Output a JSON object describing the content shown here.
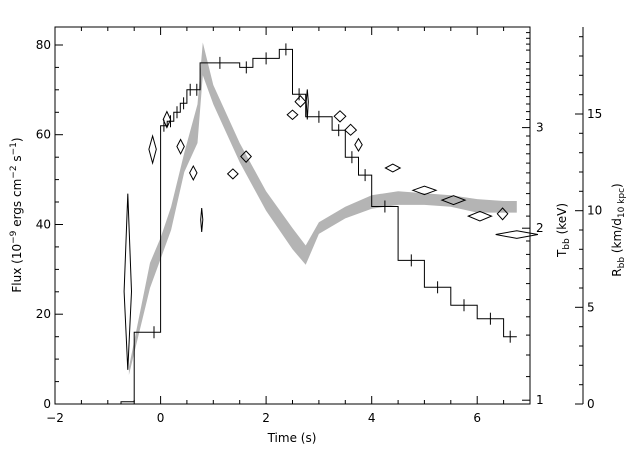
{
  "chart_data": {
    "type": "line",
    "x_axis": {
      "label": "Time (s)",
      "range": [
        -2,
        7
      ],
      "ticks": [
        -2,
        0,
        2,
        4,
        6
      ],
      "tick_labels": [
        "−2",
        "0",
        "2",
        "4",
        "6"
      ]
    },
    "y_left": {
      "label_main": "Flux (10",
      "label_sup1": "−9",
      "label_mid": " ergs cm",
      "label_sup2": "−2",
      "label_mid2": " s",
      "label_sup3": "−1",
      "label_end": ")",
      "range": [
        0,
        84
      ],
      "ticks": [
        0,
        20,
        40,
        60,
        80
      ],
      "tick_labels": [
        "0",
        "20",
        "40",
        "60",
        "80"
      ]
    },
    "y_temp": {
      "label_main": "T",
      "label_sub": "bb",
      "label_unit": " (keV)",
      "scale": "log",
      "range": [
        0.985,
        4.5
      ],
      "ticks": [
        1,
        2,
        3
      ],
      "tick_labels": [
        "1",
        "2",
        "3"
      ]
    },
    "y_radius": {
      "label_main": "R",
      "label_sub": "bb",
      "label_unit_start": " (km/d",
      "label_unit_sub": "10 kpc",
      "label_unit_end": ")",
      "range": [
        0,
        19.5
      ],
      "ticks": [
        0,
        5,
        10,
        15
      ],
      "tick_labels": [
        "0",
        "5",
        "10",
        "15"
      ]
    },
    "series": [
      {
        "kind": "flux-histogram",
        "color": "#000000",
        "edges": [
          -0.75,
          -0.5,
          -0.25,
          0.0,
          0.125,
          0.25,
          0.375,
          0.5,
          0.625,
          0.75,
          1.5,
          1.75,
          2.25,
          2.5,
          2.75,
          3.25,
          3.5,
          3.75,
          4.0,
          4.5,
          5.0,
          5.5,
          6.0,
          6.5,
          6.75
        ],
        "values": [
          0.5,
          16,
          16,
          62,
          63,
          65,
          67,
          70,
          70,
          76,
          75,
          77,
          79,
          69,
          64,
          61,
          55,
          51,
          44,
          32,
          26,
          22,
          19,
          15
        ]
      },
      {
        "kind": "radius-band",
        "color": "#b4b4b4",
        "x": [
          -0.6,
          -0.2,
          0.0,
          0.2,
          0.45,
          0.7,
          0.8,
          1.0,
          1.5,
          2.0,
          2.5,
          2.75,
          3.0,
          3.5,
          4.0,
          4.5,
          5.0,
          5.5,
          6.0,
          6.5,
          6.75
        ],
        "lower": [
          1.5,
          6.0,
          7.5,
          9.0,
          12.0,
          13.5,
          17.0,
          15.5,
          12.5,
          10.0,
          8.0,
          7.2,
          8.8,
          9.6,
          10.1,
          10.3,
          10.3,
          10.2,
          9.9,
          9.9,
          9.9
        ],
        "upper": [
          1.9,
          7.3,
          8.6,
          10.2,
          13.0,
          15.5,
          18.7,
          16.5,
          13.5,
          11.0,
          9.1,
          8.2,
          9.4,
          10.2,
          10.8,
          11.0,
          10.9,
          10.8,
          10.6,
          10.5,
          10.5
        ]
      },
      {
        "kind": "temperature-diamonds",
        "color": "#000000",
        "points": [
          {
            "t": -0.62,
            "dt": 0.07,
            "temp": 1.55,
            "lo": 1.13,
            "hi": 2.3
          },
          {
            "t": -0.15,
            "dt": 0.07,
            "temp": 2.75,
            "lo": 2.6,
            "hi": 2.9
          },
          {
            "t": 0.12,
            "dt": 0.07,
            "temp": 3.1,
            "lo": 3.0,
            "hi": 3.2
          },
          {
            "t": 0.38,
            "dt": 0.07,
            "temp": 2.78,
            "lo": 2.7,
            "hi": 2.86
          },
          {
            "t": 0.62,
            "dt": 0.07,
            "temp": 2.5,
            "lo": 2.43,
            "hi": 2.57
          },
          {
            "t": 0.78,
            "dt": 0.02,
            "temp": 2.07,
            "lo": 1.97,
            "hi": 2.17
          },
          {
            "t": 1.37,
            "dt": 0.1,
            "temp": 2.49,
            "lo": 2.44,
            "hi": 2.54
          },
          {
            "t": 1.62,
            "dt": 0.1,
            "temp": 2.67,
            "lo": 2.61,
            "hi": 2.73
          },
          {
            "t": 2.5,
            "dt": 0.1,
            "temp": 3.16,
            "lo": 3.1,
            "hi": 3.22
          },
          {
            "t": 2.65,
            "dt": 0.1,
            "temp": 3.33,
            "lo": 3.26,
            "hi": 3.41
          },
          {
            "t": 2.78,
            "dt": 0.02,
            "temp": 3.33,
            "lo": 3.1,
            "hi": 3.5
          },
          {
            "t": 3.4,
            "dt": 0.11,
            "temp": 3.14,
            "lo": 3.07,
            "hi": 3.21
          },
          {
            "t": 3.6,
            "dt": 0.11,
            "temp": 2.97,
            "lo": 2.91,
            "hi": 3.04
          },
          {
            "t": 3.75,
            "dt": 0.07,
            "temp": 2.8,
            "lo": 2.73,
            "hi": 2.87
          },
          {
            "t": 4.4,
            "dt": 0.14,
            "temp": 2.55,
            "lo": 2.51,
            "hi": 2.59
          },
          {
            "t": 5.0,
            "dt": 0.22,
            "temp": 2.33,
            "lo": 2.29,
            "hi": 2.37
          },
          {
            "t": 5.55,
            "dt": 0.22,
            "temp": 2.24,
            "lo": 2.2,
            "hi": 2.28
          },
          {
            "t": 6.05,
            "dt": 0.22,
            "temp": 2.1,
            "lo": 2.06,
            "hi": 2.14
          },
          {
            "t": 6.48,
            "dt": 0.1,
            "temp": 2.12,
            "lo": 2.07,
            "hi": 2.17
          },
          {
            "t": 6.75,
            "dt": 0.4,
            "temp": 1.95,
            "lo": 1.92,
            "hi": 1.98
          }
        ]
      }
    ],
    "grid": false,
    "legend": "none"
  }
}
